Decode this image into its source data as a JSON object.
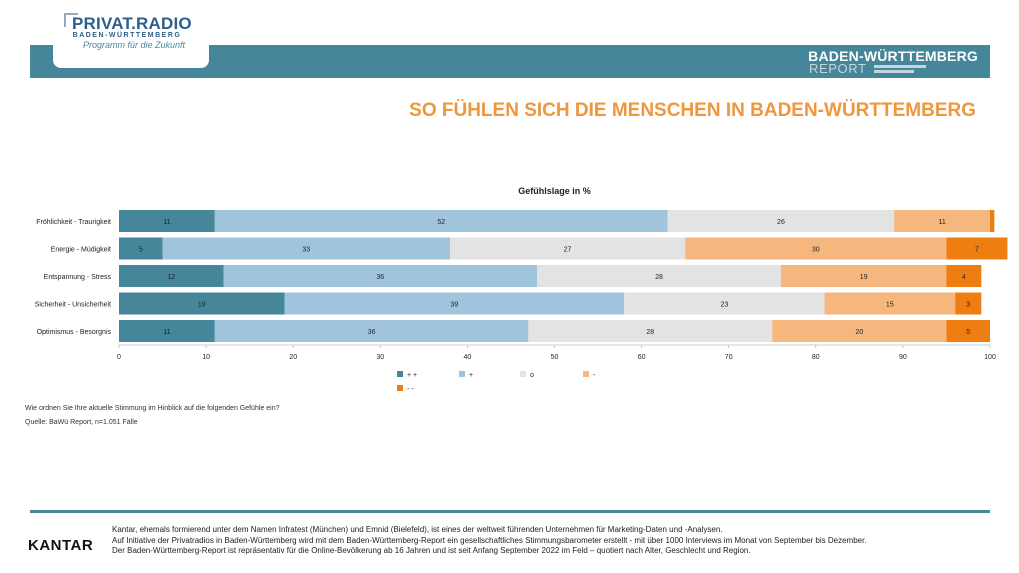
{
  "logo": {
    "name": "PRIVAT.RADIO",
    "region": "BADEN-WÜRTTEMBERG",
    "tagline": "Programm für die Zukunft"
  },
  "report": {
    "title": "BADEN-WÜRTTEMBERG",
    "subtitle": "REPORT"
  },
  "page_title": "SO FÜHLEN SICH DIE MENSCHEN IN BADEN-WÜRTTEMBERG",
  "question": "Wie ordnen Sie Ihre aktuelle Stimmung im Hinblick auf die folgenden Gefühle ein?",
  "source": "Quelle: BaWü Report, n=1.051 Fälle",
  "chart_data": {
    "type": "bar",
    "orientation": "horizontal",
    "stacked": true,
    "title": "Gefühlslage in %",
    "xlabel": "",
    "ylabel": "",
    "xlim": [
      0,
      100
    ],
    "xticks": [
      0,
      10,
      20,
      30,
      40,
      50,
      60,
      70,
      80,
      90,
      100
    ],
    "legend_position": "bottom",
    "categories": [
      "Fröhlichkeit - Traurigkeit",
      "Energie - Müdigkeit",
      "Entspannung - Stress",
      "Sicherheit - Unsicherheit",
      "Optimismus - Besorgnis"
    ],
    "series": [
      {
        "name": "+ +",
        "color": "#45869b",
        "values": [
          11,
          5,
          12,
          19,
          11
        ]
      },
      {
        "name": "+",
        "color": "#a0c4db",
        "values": [
          52,
          33,
          36,
          39,
          36
        ]
      },
      {
        "name": "o",
        "color": "#e3e3e3",
        "values": [
          26,
          27,
          28,
          23,
          28
        ]
      },
      {
        "name": "-",
        "color": "#f6b77e",
        "values": [
          11,
          30,
          19,
          15,
          20
        ]
      },
      {
        "name": "- -",
        "color": "#ee7d12",
        "values": [
          0.5,
          7,
          4,
          3,
          5
        ]
      }
    ],
    "value_labels": [
      [
        "11",
        "52",
        "26",
        "11",
        ""
      ],
      [
        "5",
        "33",
        "27",
        "30",
        "7"
      ],
      [
        "12",
        "36",
        "28",
        "19",
        "4"
      ],
      [
        "19",
        "39",
        "23",
        "15",
        "3"
      ],
      [
        "11",
        "36",
        "28",
        "20",
        "5"
      ]
    ]
  },
  "footer": {
    "brand": "KANTAR",
    "line1": "Kantar, ehemals formierend unter dem Namen Infratest (München) und Emnid (Bielefeld), ist eines der weltweit führenden Unternehmen für Marketing-Daten und -Analysen.",
    "line2": "Auf Initiative der Privatradios in Baden-Württemberg wird mit dem Baden-Württemberg-Report ein gesellschaftliches Stimmungsbarometer erstellt - mit über 1000 Interviews im Monat von September bis Dezember.",
    "line3": "Der Baden-Württemberg-Report ist repräsentativ für die Online-Bevölkerung ab 16 Jahren und ist seit Anfang September 2022 im Feld – quotiert nach Alter, Geschlecht und Region."
  }
}
